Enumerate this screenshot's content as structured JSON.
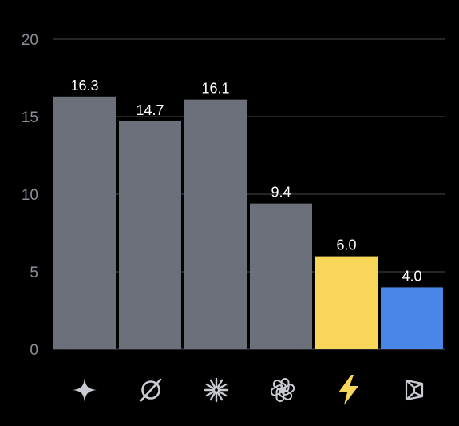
{
  "chart_data": {
    "type": "bar",
    "categories": [
      "gemini-icon",
      "perplexity-icon",
      "claude-icon",
      "openai-icon",
      "lightning-icon",
      "cube-icon"
    ],
    "values": [
      16.3,
      14.7,
      16.1,
      9.4,
      6.0,
      4.0
    ],
    "value_labels": [
      "16.3",
      "14.7",
      "16.1",
      "9.4",
      "6.0",
      "4.0"
    ],
    "bar_colors": [
      "#6b707a",
      "#6b707a",
      "#6b707a",
      "#6b707a",
      "#f7d65a",
      "#4a86e8"
    ],
    "ylim": [
      0,
      20
    ],
    "yticks": [
      0,
      5,
      10,
      15,
      20
    ],
    "ytick_labels": [
      "0",
      "5",
      "10",
      "15",
      "20"
    ],
    "grid": true,
    "legend": "none",
    "title": "",
    "xlabel": "",
    "ylabel": ""
  },
  "colors": {
    "background": "#000000",
    "bar_default": "#6b707a",
    "bar_highlight": "#f7d65a",
    "bar_accent": "#4a86e8",
    "icon_default": "#c8cbd1",
    "icon_highlight": "#f7d65a",
    "gridline": "#3a3d44",
    "tick_text": "#8a8f98",
    "value_text": "#ffffff"
  }
}
